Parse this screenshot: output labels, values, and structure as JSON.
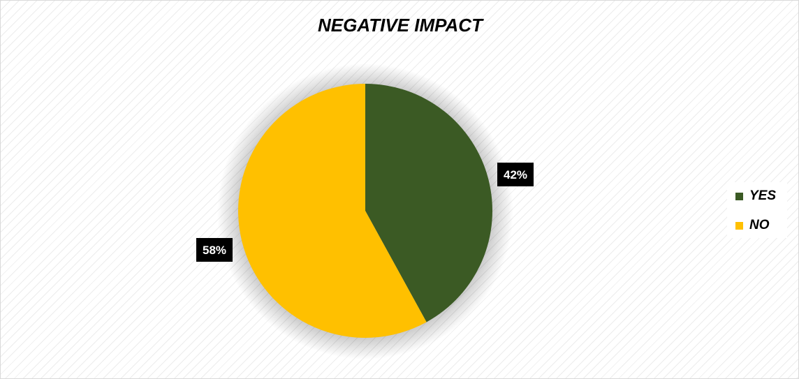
{
  "chart_data": {
    "type": "pie",
    "title": "NEGATIVE IMPACT",
    "categories": [
      "YES",
      "NO"
    ],
    "values": [
      42,
      58
    ],
    "labels": [
      "42%",
      "58%"
    ],
    "colors": [
      "#3b5a24",
      "#ffc000"
    ],
    "start_angle_deg": 0,
    "direction": "clockwise",
    "legend_position": "right"
  }
}
